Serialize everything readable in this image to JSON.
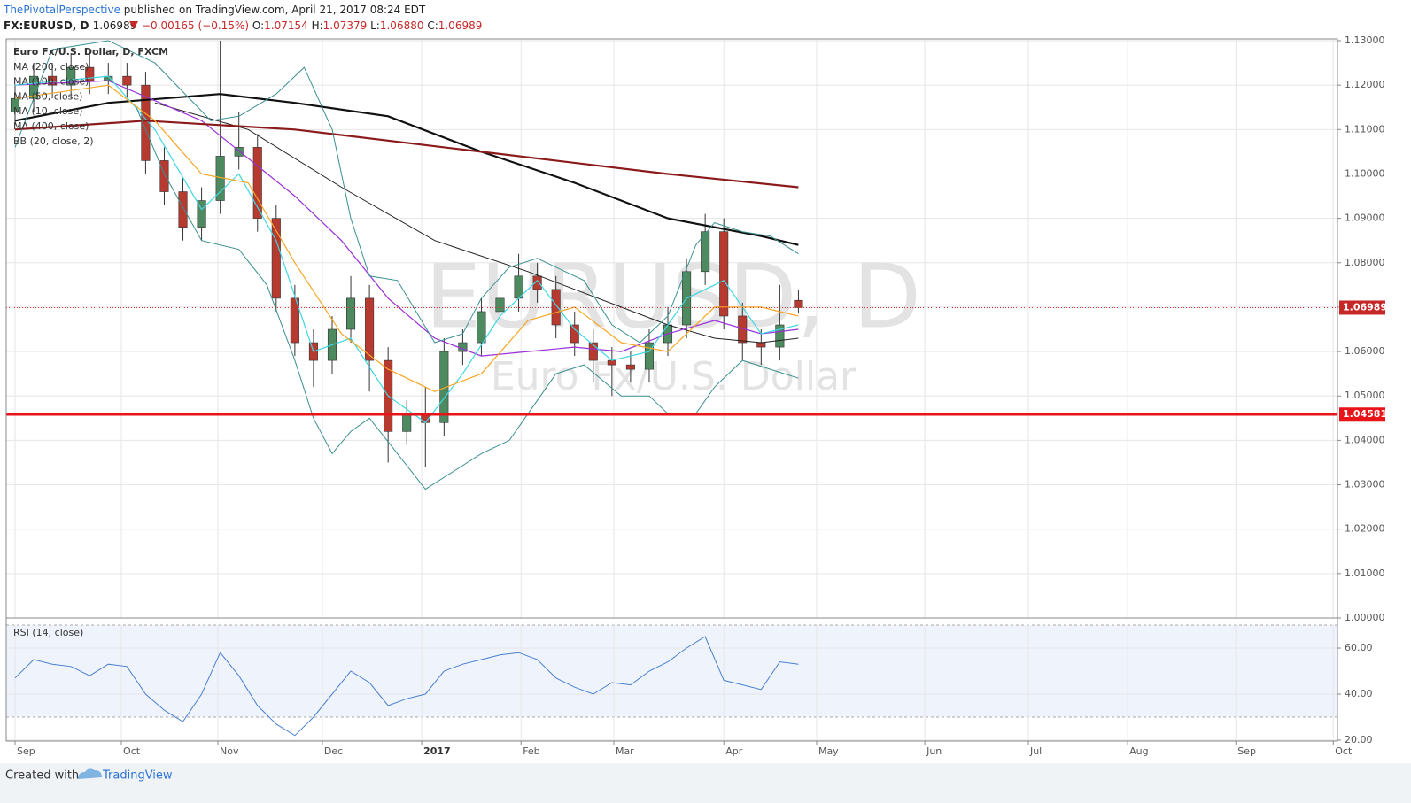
{
  "header": {
    "author": "ThePivotalPerspective",
    "published": "published on TradingView.com, April 21, 2017 08:24 EDT",
    "symbol": "FX:EURUSD, D",
    "change": "−0.00165 (−0.15%)",
    "o_label": "O:",
    "o": "1.07154",
    "h_label": "H:",
    "h": "1.07379",
    "l_label": "L:",
    "l": "1.06880",
    "c_label": "C:",
    "c": "1.06989"
  },
  "footer": {
    "created": "Created with",
    "brand": "TradingView"
  },
  "chart_data": [
    {
      "type": "candlestick",
      "title": "Euro Fx/U.S. Dollar, D, FXCM",
      "watermark": "EURUSD, D",
      "watermark_subtitle": "Euro Fx/U.S. Dollar",
      "up_color": "#4e8a5f",
      "down_color": "#b63a2f",
      "x": [
        0,
        4,
        8,
        12,
        16,
        20,
        24,
        28,
        32,
        36,
        40,
        44,
        48,
        52,
        56,
        60,
        64,
        68,
        72,
        76,
        80,
        84,
        88,
        92,
        96,
        100,
        104,
        108,
        112,
        116,
        120,
        124,
        128,
        132,
        136,
        140,
        144,
        148,
        152,
        156,
        160,
        164,
        168
      ],
      "open": [
        1.114,
        1.117,
        1.122,
        1.12,
        1.124,
        1.121,
        1.122,
        1.12,
        1.103,
        1.096,
        1.088,
        1.094,
        1.104,
        1.106,
        1.09,
        1.072,
        1.062,
        1.058,
        1.065,
        1.072,
        1.058,
        1.042,
        1.046,
        1.044,
        1.06,
        1.062,
        1.069,
        1.072,
        1.077,
        1.074,
        1.066,
        1.062,
        1.058,
        1.057,
        1.056,
        1.062,
        1.066,
        1.078,
        1.087,
        1.068,
        1.062,
        1.061,
        1.07154
      ],
      "high": [
        1.12,
        1.125,
        1.125,
        1.127,
        1.127,
        1.125,
        1.125,
        1.123,
        1.106,
        1.099,
        1.097,
        1.13,
        1.114,
        1.109,
        1.093,
        1.075,
        1.065,
        1.068,
        1.077,
        1.075,
        1.061,
        1.049,
        1.052,
        1.063,
        1.065,
        1.072,
        1.075,
        1.082,
        1.08,
        1.077,
        1.069,
        1.065,
        1.061,
        1.06,
        1.065,
        1.07,
        1.081,
        1.091,
        1.09,
        1.071,
        1.065,
        1.075,
        1.07379
      ],
      "low": [
        1.111,
        1.114,
        1.117,
        1.117,
        1.118,
        1.118,
        1.117,
        1.1,
        1.093,
        1.085,
        1.085,
        1.091,
        1.101,
        1.087,
        1.069,
        1.059,
        1.052,
        1.055,
        1.062,
        1.051,
        1.035,
        1.039,
        1.034,
        1.041,
        1.057,
        1.059,
        1.066,
        1.069,
        1.071,
        1.063,
        1.059,
        1.053,
        1.05,
        1.053,
        1.053,
        1.059,
        1.063,
        1.075,
        1.065,
        1.058,
        1.057,
        1.058,
        1.0688
      ],
      "close": [
        1.117,
        1.122,
        1.12,
        1.124,
        1.121,
        1.122,
        1.12,
        1.103,
        1.096,
        1.088,
        1.094,
        1.104,
        1.106,
        1.09,
        1.072,
        1.062,
        1.058,
        1.065,
        1.072,
        1.058,
        1.042,
        1.046,
        1.044,
        1.06,
        1.062,
        1.069,
        1.072,
        1.077,
        1.074,
        1.066,
        1.062,
        1.058,
        1.057,
        1.056,
        1.062,
        1.066,
        1.078,
        1.087,
        1.068,
        1.062,
        1.061,
        1.066,
        1.06989
      ],
      "series": [
        {
          "name": "MA (200, close)",
          "color": "#111111",
          "width": 2.2,
          "x": [
            0,
            20,
            44,
            60,
            80,
            100,
            120,
            140,
            160,
            168
          ],
          "values": [
            1.112,
            1.116,
            1.118,
            1.116,
            1.113,
            1.105,
            1.098,
            1.09,
            1.086,
            1.084
          ]
        },
        {
          "name": "MA (100, close)",
          "color": "#222222",
          "width": 1,
          "x": [
            30,
            50,
            70,
            90,
            110,
            130,
            140,
            150,
            160,
            168
          ],
          "values": [
            1.116,
            1.11,
            1.097,
            1.085,
            1.078,
            1.07,
            1.066,
            1.063,
            1.062,
            1.063
          ]
        },
        {
          "name": "MA (50, close)",
          "color": "#9b30d9",
          "width": 1.2,
          "x": [
            0,
            20,
            40,
            60,
            70,
            80,
            90,
            100,
            110,
            120,
            130,
            140,
            150,
            160,
            168
          ],
          "values": [
            1.12,
            1.121,
            1.112,
            1.095,
            1.085,
            1.072,
            1.063,
            1.059,
            1.06,
            1.061,
            1.06,
            1.064,
            1.067,
            1.064,
            1.065
          ]
        },
        {
          "name": "MA (10, close)",
          "color": "#3ed6e6",
          "width": 1.2,
          "x": [
            0,
            20,
            30,
            40,
            48,
            56,
            64,
            72,
            80,
            88,
            96,
            104,
            112,
            120,
            128,
            136,
            144,
            152,
            160,
            168
          ],
          "values": [
            1.12,
            1.122,
            1.11,
            1.092,
            1.1,
            1.085,
            1.06,
            1.063,
            1.05,
            1.044,
            1.055,
            1.068,
            1.076,
            1.065,
            1.058,
            1.06,
            1.072,
            1.076,
            1.064,
            1.066
          ]
        },
        {
          "name": "MA (400, close)",
          "color": "#8b1a1a",
          "width": 2.2,
          "x": [
            0,
            28,
            60,
            100,
            140,
            168
          ],
          "values": [
            1.11,
            1.112,
            1.11,
            1.105,
            1.1,
            1.097
          ]
        },
        {
          "name": "BB (20, close, 2)",
          "color": "#3a8f8f",
          "width": 1,
          "x": [
            0,
            8,
            20,
            30,
            42,
            48,
            56,
            62,
            68,
            72,
            76,
            82,
            90,
            96,
            100,
            106,
            112,
            118,
            122,
            128,
            134,
            140,
            146,
            150,
            156,
            162,
            168
          ],
          "values": [
            1.106,
            1.128,
            1.13,
            1.125,
            1.112,
            1.113,
            1.118,
            1.124,
            1.11,
            1.09,
            1.077,
            1.076,
            1.062,
            1.064,
            1.072,
            1.079,
            1.081,
            1.078,
            1.076,
            1.066,
            1.062,
            1.068,
            1.084,
            1.089,
            1.087,
            1.086,
            1.082
          ]
        },
        {
          "color": "#3a8f8f",
          "width": 1,
          "x": [
            26,
            32,
            40,
            48,
            54,
            60,
            64,
            68,
            72,
            76,
            82,
            88,
            94,
            100,
            106,
            110,
            116,
            122,
            130,
            136,
            140,
            146,
            150,
            156,
            162,
            168
          ],
          "values": [
            1.115,
            1.1,
            1.085,
            1.083,
            1.075,
            1.058,
            1.045,
            1.037,
            1.042,
            1.045,
            1.037,
            1.029,
            1.033,
            1.037,
            1.04,
            1.046,
            1.055,
            1.057,
            1.05,
            1.05,
            1.046,
            1.046,
            1.052,
            1.058,
            1.056,
            1.054
          ]
        },
        {
          "color": "#f5a623",
          "width": 1.2,
          "x": [
            0,
            20,
            30,
            40,
            50,
            60,
            70,
            80,
            90,
            100,
            110,
            120,
            130,
            140,
            150,
            160,
            168
          ],
          "values": [
            1.117,
            1.12,
            1.112,
            1.1,
            1.098,
            1.08,
            1.064,
            1.056,
            1.051,
            1.055,
            1.067,
            1.07,
            1.062,
            1.06,
            1.07,
            1.07,
            1.068
          ]
        }
      ],
      "hlines": [
        {
          "value": 1.04581,
          "color": "#e8141a"
        }
      ],
      "xlim": [
        -1.9,
        283.6
      ],
      "ylim": [
        1.0,
        1.1304
      ],
      "yticks": [
        {
          "value": 1.0,
          "label": "1.00000"
        },
        {
          "value": 1.01,
          "label": "1.01000"
        },
        {
          "value": 1.02,
          "label": "1.02000"
        },
        {
          "value": 1.03,
          "label": "1.03000"
        },
        {
          "value": 1.04,
          "label": "1.04000"
        },
        {
          "value": 1.05,
          "label": "1.05000"
        },
        {
          "value": 1.06,
          "label": "1.06000"
        },
        {
          "value": 1.07,
          "label": "1.07000"
        },
        {
          "value": 1.08,
          "label": "1.08000"
        },
        {
          "value": 1.09,
          "label": "1.09000"
        },
        {
          "value": 1.1,
          "label": "1.10000"
        },
        {
          "value": 1.11,
          "label": "1.11000"
        },
        {
          "value": 1.12,
          "label": "1.12000"
        },
        {
          "value": 1.13,
          "label": "1.13000"
        }
      ],
      "grid": true
    },
    {
      "type": "line",
      "title": "RSI (14, close)",
      "color": "#4a7fd0",
      "band": [
        30,
        70
      ],
      "band_color": "#eef3fc",
      "x": [
        0,
        4,
        8,
        12,
        16,
        20,
        24,
        28,
        32,
        36,
        40,
        44,
        48,
        52,
        56,
        60,
        64,
        68,
        72,
        76,
        80,
        84,
        88,
        92,
        96,
        100,
        104,
        108,
        112,
        116,
        120,
        124,
        128,
        132,
        136,
        140,
        144,
        148,
        152,
        156,
        160,
        164,
        168
      ],
      "values": [
        47,
        55,
        53,
        52,
        48,
        53,
        52,
        40,
        33,
        28,
        40,
        58,
        48,
        35,
        27,
        22,
        30,
        40,
        50,
        45,
        35,
        38,
        40,
        50,
        53,
        55,
        57,
        58,
        55,
        47,
        43,
        40,
        45,
        44,
        50,
        54,
        60,
        65,
        46,
        44,
        42,
        54,
        53
      ],
      "xlim": [
        -1.9,
        283.6
      ],
      "ylim": [
        19.6,
        70.4
      ],
      "yticks": [
        {
          "value": 20,
          "label": "20.00"
        },
        {
          "value": 40,
          "label": "40.00"
        },
        {
          "value": 60,
          "label": "60.00"
        }
      ],
      "xticks": [
        {
          "value": 0,
          "label": "Sep"
        },
        {
          "value": 22.8,
          "label": "Oct"
        },
        {
          "value": 43.5,
          "label": "Nov"
        },
        {
          "value": 65.9,
          "label": "Dec"
        },
        {
          "value": 87.2,
          "label": "2017"
        },
        {
          "value": 108.5,
          "label": "Feb"
        },
        {
          "value": 128.4,
          "label": "Mar"
        },
        {
          "value": 152,
          "label": "Apr"
        },
        {
          "value": 171.9,
          "label": "May"
        },
        {
          "value": 195.1,
          "label": "Jun"
        },
        {
          "value": 217.3,
          "label": "Jul"
        },
        {
          "value": 238.6,
          "label": "Aug"
        },
        {
          "value": 261.8,
          "label": "Sep"
        },
        {
          "value": 282.7,
          "label": "Oct"
        }
      ],
      "grid": true
    }
  ]
}
